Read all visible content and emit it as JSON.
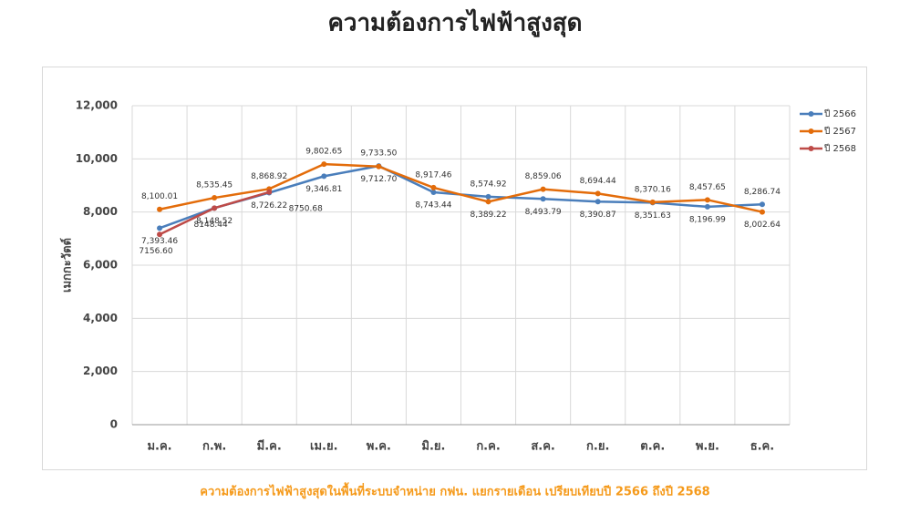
{
  "chart_data": {
    "type": "line",
    "title": "ความต้องการไฟฟ้าสูงสุด",
    "caption": "ความต้องการไฟฟ้าสูงสุดในพื้นที่ระบบจำหน่าย กฟน. แยกรายเดือน เปรียบเทียบปี 2566 ถึงปี 2568",
    "y_label": "เมกกะวัตต์",
    "categories": [
      "ม.ค.",
      "ก.พ.",
      "มี.ค.",
      "เม.ย.",
      "พ.ค.",
      "มิ.ย.",
      "ก.ค.",
      "ส.ค.",
      "ก.ย.",
      "ต.ค.",
      "พ.ย.",
      "ธ.ค."
    ],
    "series": [
      {
        "name": "ปี 2566",
        "color": "#4a7ebb",
        "values": [
          7393.46,
          8148.52,
          8726.22,
          9346.81,
          9733.5,
          8743.44,
          8574.92,
          8493.79,
          8390.87,
          8351.63,
          8196.99,
          8286.74
        ],
        "value_labels": [
          "7,393.46",
          "8,148.52",
          "8,726.22",
          "9,346.81",
          "9,733.50",
          "8,743.44",
          "8,574.92",
          "8,493.79",
          "8,390.87",
          "8,351.63",
          "8,196.99",
          "8,286.74"
        ]
      },
      {
        "name": "ปี 2567",
        "color": "#e36c0a",
        "values": [
          8100.01,
          8535.45,
          8868.92,
          9802.65,
          9712.7,
          8917.46,
          8389.22,
          8859.06,
          8694.44,
          8370.16,
          8457.65,
          8002.64
        ],
        "value_labels": [
          "8,100.01",
          "8,535.45",
          "8,868.92",
          "9,802.65",
          "9,712.70",
          "8,917.46",
          "8,389.22",
          "8,859.06",
          "8,694.44",
          "8,370.16",
          "8,457.65",
          "8,002.64"
        ]
      },
      {
        "name": "ปี 2568",
        "color": "#be4b48",
        "values": [
          7156.6,
          8148.44,
          8750.68,
          null,
          null,
          null,
          null,
          null,
          null,
          null,
          null,
          null
        ],
        "value_labels": [
          "7156.60",
          "8148.44",
          "8750.68",
          null,
          null,
          null,
          null,
          null,
          null,
          null,
          null,
          null
        ]
      }
    ],
    "ylim": [
      0,
      12000
    ],
    "yticks": [
      0,
      {
        "value": 2000,
        "label": "2,000"
      },
      {
        "value": 4000,
        "label": "4,000"
      },
      {
        "value": 6000,
        "label": "6,000"
      },
      {
        "value": 8000,
        "label": "8,000"
      },
      {
        "value": 10000,
        "label": "10,000"
      },
      {
        "value": 12000,
        "label": "12,000"
      }
    ],
    "grid": true,
    "legend": "right"
  }
}
